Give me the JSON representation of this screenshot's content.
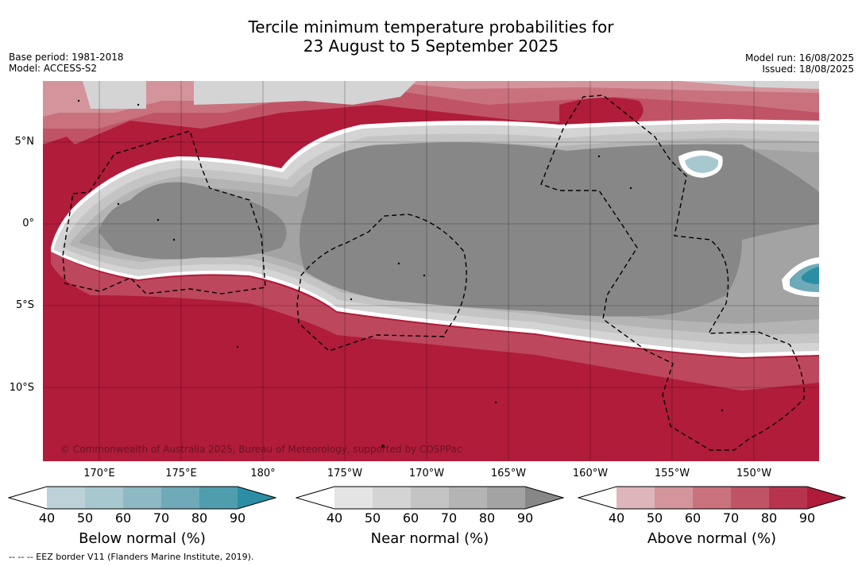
{
  "title": {
    "line1": "Tercile minimum temperature probabilities for",
    "line2": "23 August to 5 September 2025"
  },
  "info_left": {
    "base_period": "Base period: 1981-2018",
    "model": "Model: ACCESS-S2"
  },
  "info_right": {
    "model_run": "Model run: 16/08/2025",
    "issued": "Issued: 18/08/2025"
  },
  "map": {
    "copyright": "© Commonwealth of Australia 2025, Bureau of Meteorology, supported by COSPPac",
    "lat_labels": [
      "5°N",
      "0°",
      "5°S",
      "10°S"
    ],
    "lon_labels": [
      "170°E",
      "175°E",
      "180°",
      "175°W",
      "170°W",
      "165°W",
      "160°W",
      "155°W",
      "150°W"
    ]
  },
  "colorbars": [
    {
      "name": "below",
      "title": "Below normal (%)",
      "ticks": [
        "40",
        "50",
        "60",
        "70",
        "80",
        "90"
      ],
      "colors": [
        "#ffffff",
        "#bcd2d8",
        "#a7c8ce",
        "#8cb9c3",
        "#6eaab8",
        "#4f9eae",
        "#2c8ea5"
      ]
    },
    {
      "name": "near",
      "title": "Near normal (%)",
      "ticks": [
        "40",
        "50",
        "60",
        "70",
        "80",
        "90"
      ],
      "colors": [
        "#ffffff",
        "#e4e4e4",
        "#d4d4d4",
        "#c4c4c4",
        "#b4b4b4",
        "#a3a3a3",
        "#878787"
      ]
    },
    {
      "name": "above",
      "title": "Above normal (%)",
      "ticks": [
        "40",
        "50",
        "60",
        "70",
        "80",
        "90"
      ],
      "colors": [
        "#ffffff",
        "#dfb5bc",
        "#d4949c",
        "#c9727e",
        "#c05466",
        "#b8344e",
        "#b01c3a"
      ]
    }
  ],
  "legend_note": "-- -- -- EEZ border V11 (Flanders Marine Institute, 2019)."
}
